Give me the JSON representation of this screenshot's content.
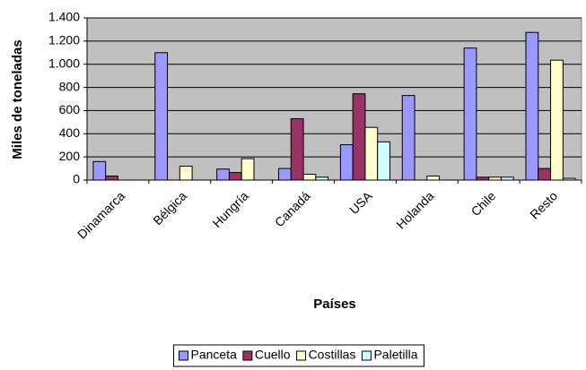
{
  "chart_data": {
    "type": "bar",
    "x_label": "Países",
    "y_label": "Miles de toneladas",
    "categories": [
      "Dinamarca",
      "Bélgica",
      "Hungría",
      "Canadá",
      "USA",
      "Holanda",
      "Chile",
      "Resto"
    ],
    "series": [
      {
        "name": "Panceta",
        "color": "#9999ff",
        "values": [
          160,
          1100,
          95,
          100,
          305,
          730,
          1140,
          1275
        ]
      },
      {
        "name": "Cuello",
        "color": "#993366",
        "values": [
          35,
          0,
          65,
          530,
          745,
          0,
          25,
          100
        ]
      },
      {
        "name": "Costillas",
        "color": "#ffffcc",
        "values": [
          0,
          120,
          185,
          50,
          455,
          35,
          25,
          1035
        ]
      },
      {
        "name": "Paletilla",
        "color": "#ccffff",
        "values": [
          0,
          0,
          0,
          25,
          330,
          0,
          25,
          15
        ]
      }
    ],
    "ylim": [
      0,
      1400
    ],
    "yticks": [
      0,
      200,
      400,
      600,
      800,
      {
        "value": 1000,
        "label": "1.000"
      },
      {
        "value": 1200,
        "label": "1.200"
      },
      {
        "value": 1400,
        "label": "1.400"
      }
    ],
    "grid": true,
    "plot_background": "#c0c0c0",
    "legend": "bottom"
  }
}
